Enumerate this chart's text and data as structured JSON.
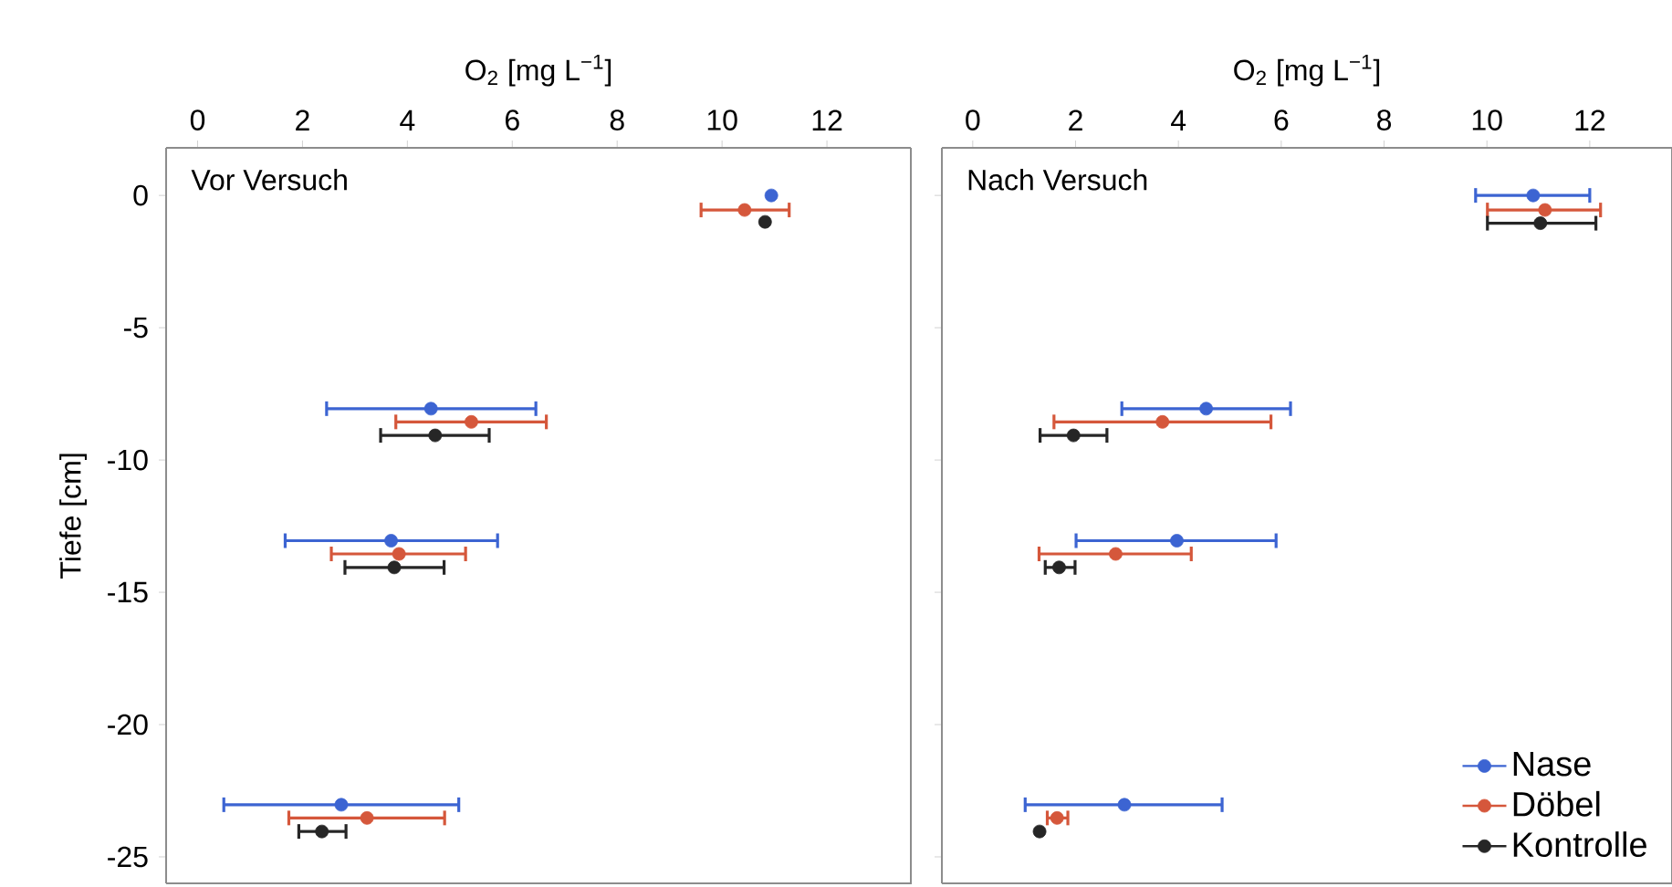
{
  "chart_data": [
    {
      "type": "scatter",
      "title": "Vor Versuch",
      "xlabel": "O$_{2}$ [mg L$^{−1}$]",
      "ylabel": "Tiefe [cm]",
      "xlim": [
        -0.6,
        13.6
      ],
      "ylim": [
        -26,
        1.8
      ],
      "xticks": [
        0,
        2,
        4,
        6,
        8,
        10,
        12
      ],
      "yticks": [
        0,
        -5,
        -10,
        -15,
        -20,
        -25
      ],
      "marker": "circle",
      "legend": false,
      "series": [
        {
          "color": "#3c64d2",
          "x": [
            10.94,
            4.45,
            3.69,
            2.74
          ],
          "values": [
            0,
            -8.06,
            -13.05,
            -23.03
          ],
          "xerrors": [
            null,
            [
              2.46,
              6.45
            ],
            [
              1.67,
              5.72
            ],
            [
              0.5,
              4.98
            ]
          ]
        },
        {
          "color": "#d5573b",
          "x": [
            10.43,
            5.22,
            3.84,
            3.23
          ],
          "values": [
            -0.55,
            -8.56,
            -13.55,
            -23.53
          ],
          "xerrors": [
            [
              9.6,
              11.28
            ],
            [
              3.78,
              6.65
            ],
            [
              2.55,
              5.11
            ],
            [
              1.74,
              4.71
            ]
          ]
        },
        {
          "color": "#262626",
          "x": [
            10.82,
            4.53,
            3.75,
            2.37
          ],
          "values": [
            -1.0,
            -9.07,
            -14.06,
            -24.04
          ],
          "xerrors": [
            null,
            [
              3.49,
              5.56
            ],
            [
              2.81,
              4.7
            ],
            [
              1.93,
              2.83
            ]
          ]
        }
      ]
    },
    {
      "type": "scatter",
      "title": "Nach Versuch",
      "xlabel": "O$_{2}$ [mg L$^{−1}$]",
      "xlim": [
        -0.6,
        13.6
      ],
      "ylim": [
        -26,
        1.8
      ],
      "xticks": [
        0,
        2,
        4,
        6,
        8,
        10,
        12
      ],
      "yticks": [
        0,
        -5,
        -10,
        -15,
        -20,
        -25
      ],
      "tick_labels": "x",
      "marker": "circle",
      "legend": "bottom right",
      "series": [
        {
          "name": "Nase",
          "color": "#3c64d2",
          "x": [
            10.9,
            4.54,
            3.97,
            2.95
          ],
          "values": [
            0,
            -8.06,
            -13.05,
            -23.03
          ],
          "xerrors": [
            [
              9.78,
              12.0
            ],
            [
              2.9,
              6.18
            ],
            [
              2.01,
              5.9
            ],
            [
              1.02,
              4.85
            ]
          ]
        },
        {
          "name": "Döbel",
          "color": "#d5573b",
          "x": [
            11.13,
            3.69,
            2.78,
            1.64
          ],
          "values": [
            -0.55,
            -8.56,
            -13.55,
            -23.53
          ],
          "xerrors": [
            [
              10.01,
              12.21
            ],
            [
              1.58,
              5.8
            ],
            [
              1.29,
              4.25
            ],
            [
              1.45,
              1.85
            ]
          ]
        },
        {
          "name": "Kontrolle",
          "color": "#262626",
          "x": [
            11.04,
            1.96,
            1.68,
            1.3
          ],
          "values": [
            -1.05,
            -9.07,
            -14.06,
            -24.04
          ],
          "xerrors": [
            [
              10.01,
              12.12
            ],
            [
              1.31,
              2.61
            ],
            [
              1.41,
              1.99
            ],
            null
          ]
        }
      ]
    }
  ]
}
